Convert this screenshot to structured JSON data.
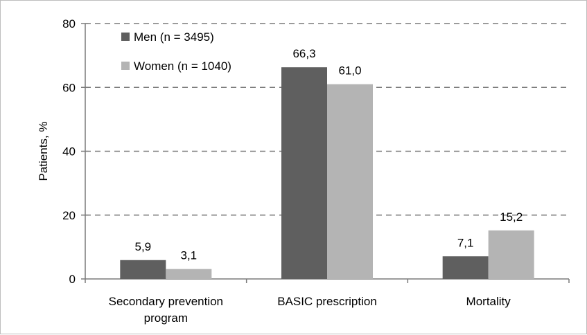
{
  "chart_data": {
    "type": "bar",
    "title": "",
    "ylabel": "Patients, %",
    "xlabel": "",
    "ylim": [
      0,
      80
    ],
    "yticks": [
      "0",
      "20",
      "40",
      "60",
      "80"
    ],
    "grid": true,
    "legend_position": "top-left",
    "categories": [
      [
        "Secondary prevention",
        "program"
      ],
      [
        "BASIC prescription"
      ],
      [
        "Mortality"
      ]
    ],
    "series": [
      {
        "name": "Men (n = 3495)",
        "color": "#5f5f5f",
        "values": [
          5.9,
          66.3,
          7.1
        ],
        "labels": [
          "5,9",
          "66,3",
          "7,1"
        ]
      },
      {
        "name": "Women (n = 1040)",
        "color": "#b4b4b4",
        "values": [
          3.1,
          61.0,
          15.2
        ],
        "labels": [
          "3,1",
          "61,0",
          "15,2"
        ]
      }
    ]
  }
}
